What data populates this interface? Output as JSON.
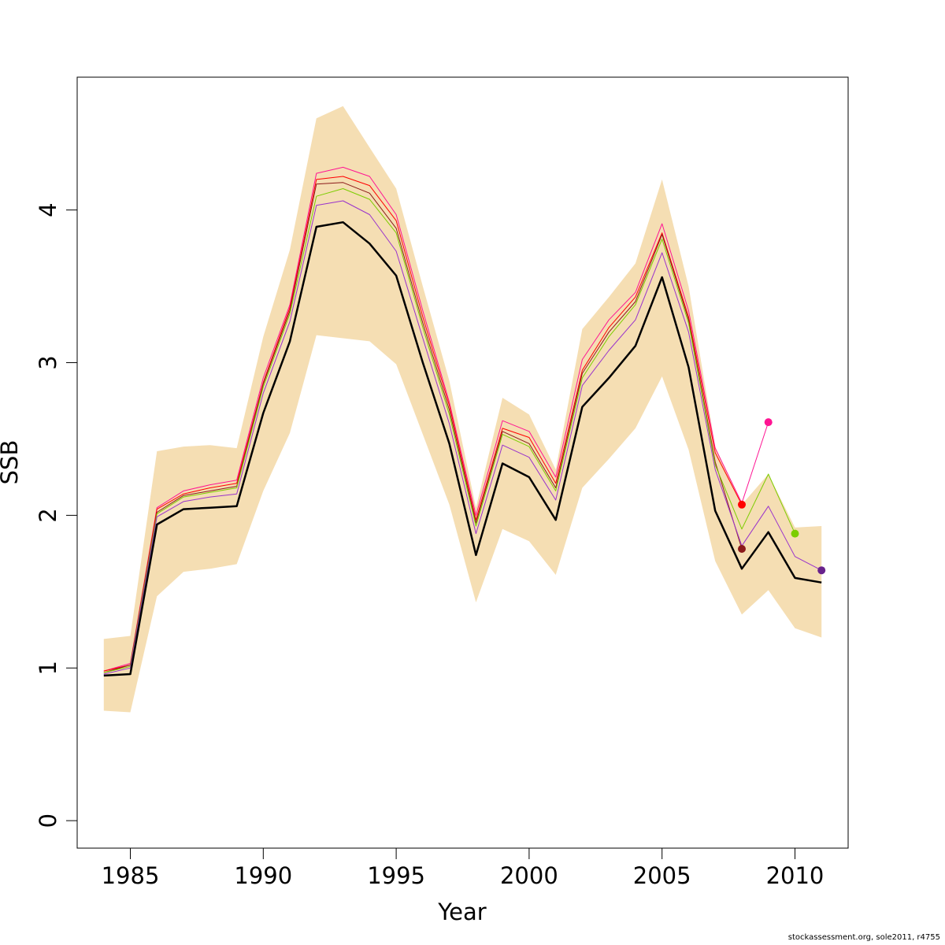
{
  "chart_data": {
    "type": "line",
    "xlabel": "Year",
    "ylabel": "SSB",
    "xlim": [
      1983,
      2012
    ],
    "ylim": [
      -0.18,
      4.87
    ],
    "x_ticks": [
      1985,
      1990,
      1995,
      2000,
      2005,
      2010
    ],
    "y_ticks": [
      0,
      1,
      2,
      3,
      4
    ],
    "confidence_band": {
      "color": "#f5deb3",
      "x": [
        1984,
        1985,
        1986,
        1987,
        1988,
        1989,
        1990,
        1991,
        1992,
        1993,
        1994,
        1995,
        1996,
        1997,
        1998,
        1999,
        2000,
        2001,
        2002,
        2003,
        2004,
        2005,
        2006,
        2007,
        2008,
        2009,
        2010,
        2011
      ],
      "upper": [
        1.19,
        1.21,
        2.42,
        2.45,
        2.46,
        2.44,
        3.17,
        3.74,
        4.6,
        4.68,
        4.41,
        4.14,
        3.5,
        2.88,
        2.05,
        2.77,
        2.66,
        2.3,
        3.22,
        3.43,
        3.65,
        4.2,
        3.5,
        2.45,
        2.07,
        2.27,
        1.92,
        1.93
      ],
      "lower": [
        0.72,
        0.71,
        1.47,
        1.63,
        1.65,
        1.68,
        2.16,
        2.54,
        3.18,
        3.16,
        3.14,
        2.99,
        2.53,
        2.07,
        1.43,
        1.91,
        1.83,
        1.61,
        2.18,
        2.37,
        2.57,
        2.91,
        2.43,
        1.7,
        1.35,
        1.51,
        1.26,
        1.2
      ]
    },
    "series": [
      {
        "color": "#ff1493",
        "width": 1,
        "x": [
          1984,
          1985,
          1986,
          1987,
          1988,
          1989,
          1990,
          1991,
          1992,
          1993,
          1994,
          1995,
          1996,
          1997,
          1998,
          1999,
          2000,
          2001,
          2002,
          2003,
          2004,
          2005,
          2006,
          2007,
          2008,
          2009
        ],
        "values": [
          0.98,
          1.03,
          2.05,
          2.16,
          2.2,
          2.23,
          2.9,
          3.38,
          4.24,
          4.28,
          4.22,
          3.97,
          3.34,
          2.74,
          2.0,
          2.62,
          2.55,
          2.25,
          3.02,
          3.28,
          3.46,
          3.91,
          3.34,
          2.44,
          2.08,
          2.61
        ],
        "end_marker": true
      },
      {
        "color": "#ff0000",
        "width": 1,
        "x": [
          1984,
          1985,
          1986,
          1987,
          1988,
          1989,
          1990,
          1991,
          1992,
          1993,
          1994,
          1995,
          1996,
          1997,
          1998,
          1999,
          2000,
          2001,
          2002,
          2003,
          2004,
          2005,
          2006,
          2007,
          2008
        ],
        "values": [
          0.98,
          1.02,
          2.04,
          2.14,
          2.18,
          2.21,
          2.87,
          3.36,
          4.2,
          4.22,
          4.16,
          3.93,
          3.3,
          2.72,
          1.97,
          2.57,
          2.51,
          2.21,
          2.95,
          3.23,
          3.43,
          3.85,
          3.3,
          2.41,
          2.07
        ],
        "end_marker": true
      },
      {
        "color": "#8b1a1a",
        "width": 1,
        "x": [
          1984,
          1985,
          1986,
          1987,
          1988,
          1989,
          1990,
          1991,
          1992,
          1993,
          1994,
          1995,
          1996,
          1997,
          1998,
          1999,
          2000,
          2001,
          2002,
          2003,
          2004,
          2005,
          2006,
          2007,
          2008
        ],
        "values": [
          0.97,
          1.02,
          2.02,
          2.13,
          2.16,
          2.19,
          2.86,
          3.34,
          4.17,
          4.18,
          4.11,
          3.88,
          3.26,
          2.69,
          1.95,
          2.55,
          2.47,
          2.18,
          2.93,
          3.2,
          3.4,
          3.84,
          3.28,
          2.35,
          1.78
        ],
        "end_marker": true
      },
      {
        "color": "#7ccd00",
        "width": 1,
        "x": [
          1984,
          1985,
          1986,
          1987,
          1988,
          1989,
          1990,
          1991,
          1992,
          1993,
          1994,
          1995,
          1996,
          1997,
          1998,
          1999,
          2000,
          2001,
          2002,
          2003,
          2004,
          2005,
          2006,
          2007,
          2008,
          2009,
          2010
        ],
        "values": [
          0.97,
          1.01,
          2.01,
          2.12,
          2.15,
          2.18,
          2.84,
          3.32,
          4.09,
          4.14,
          4.07,
          3.85,
          3.23,
          2.66,
          1.93,
          2.53,
          2.45,
          2.16,
          2.9,
          3.17,
          3.38,
          3.81,
          3.26,
          2.33,
          1.91,
          2.27,
          1.88
        ],
        "end_marker": true
      },
      {
        "color": "#9932cc",
        "width": 1,
        "x": [
          1984,
          1985,
          1986,
          1987,
          1988,
          1989,
          1990,
          1991,
          1992,
          1993,
          1994,
          1995,
          1996,
          1997,
          1998,
          1999,
          2000,
          2001,
          2002,
          2003,
          2004,
          2005,
          2006,
          2007,
          2008,
          2009,
          2010,
          2011
        ],
        "values": [
          0.96,
          1.0,
          1.99,
          2.09,
          2.12,
          2.14,
          2.8,
          3.27,
          4.03,
          4.06,
          3.97,
          3.73,
          3.16,
          2.6,
          1.88,
          2.46,
          2.38,
          2.1,
          2.85,
          3.08,
          3.28,
          3.72,
          3.2,
          2.3,
          1.8,
          2.06,
          1.73,
          1.64
        ],
        "end_marker": true,
        "marker_color": "#68228b"
      },
      {
        "color": "#000000",
        "width": 2.5,
        "x": [
          1984,
          1985,
          1986,
          1987,
          1988,
          1989,
          1990,
          1991,
          1992,
          1993,
          1994,
          1995,
          1996,
          1997,
          1998,
          1999,
          2000,
          2001,
          2002,
          2003,
          2004,
          2005,
          2006,
          2007,
          2008,
          2009,
          2010,
          2011
        ],
        "values": [
          0.95,
          0.96,
          1.94,
          2.04,
          2.05,
          2.06,
          2.67,
          3.14,
          3.89,
          3.92,
          3.78,
          3.57,
          3.0,
          2.47,
          1.74,
          2.34,
          2.25,
          1.97,
          2.71,
          2.9,
          3.11,
          3.56,
          2.97,
          2.03,
          1.65,
          1.89,
          1.59,
          1.56
        ],
        "end_marker": false
      }
    ],
    "grid": false,
    "legend": "none"
  },
  "credit": "stockassessment.org, sole2011, r4755"
}
